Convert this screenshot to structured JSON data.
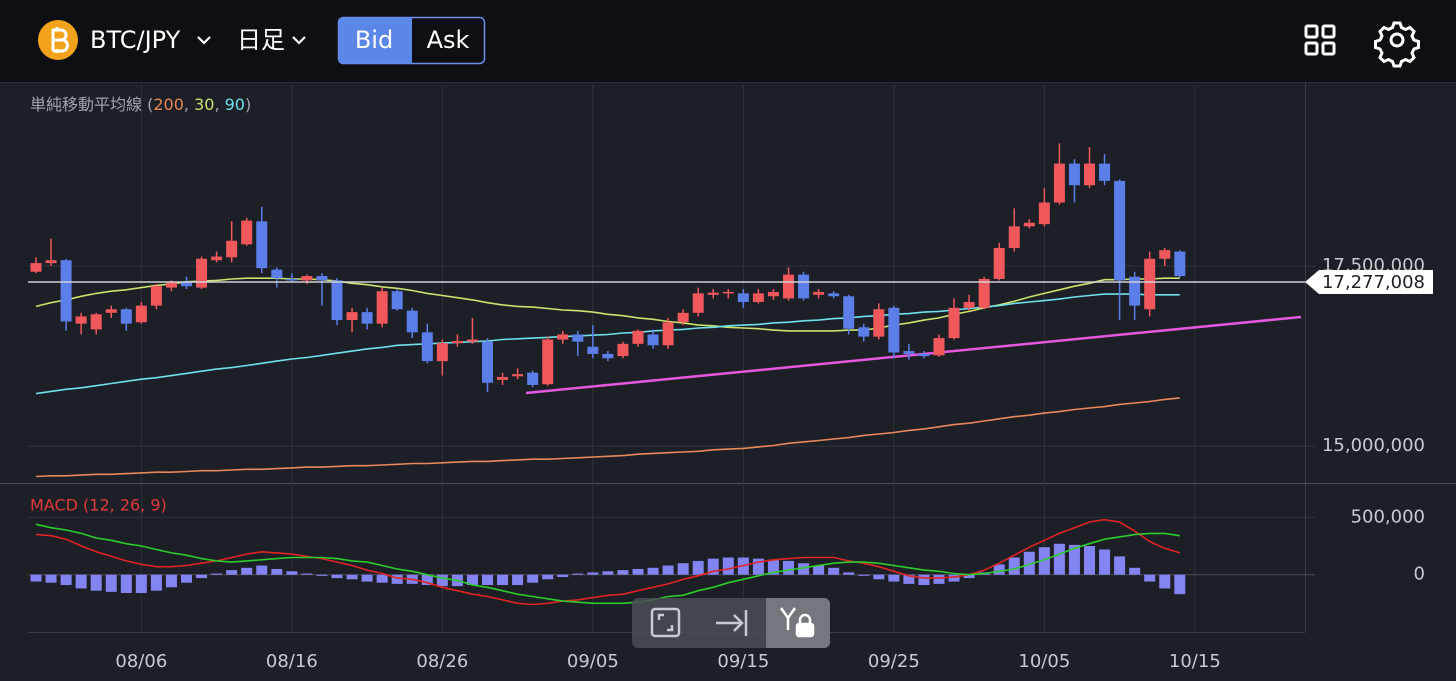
{
  "header": {
    "pair": "BTC/JPY",
    "timeframe": "日足",
    "bid": "Bid",
    "ask": "Ask"
  },
  "chart_data": [
    {
      "type": "candlestick",
      "legend_title": "単純移動平均線",
      "categories": [
        null,
        null,
        null,
        null,
        null,
        null,
        null,
        "08/06",
        null,
        null,
        null,
        null,
        null,
        null,
        null,
        null,
        null,
        "08/16",
        null,
        null,
        null,
        null,
        null,
        null,
        null,
        null,
        null,
        "08/26",
        null,
        null,
        null,
        null,
        null,
        null,
        null,
        null,
        null,
        "09/05",
        null,
        null,
        null,
        null,
        null,
        null,
        null,
        null,
        null,
        "09/15",
        null,
        null,
        null,
        null,
        null,
        null,
        null,
        null,
        null,
        "09/25",
        null,
        null,
        null,
        null,
        null,
        null,
        null,
        null,
        null,
        "10/05",
        null,
        null,
        null,
        null,
        null,
        null,
        null,
        null,
        null,
        "10/15"
      ],
      "up_color": "#f0585c",
      "down_color": "#5b7ee8",
      "open": [
        17420000,
        17540000,
        17580000,
        16700000,
        16620000,
        16850000,
        16900000,
        16720000,
        16950000,
        17200000,
        17270000,
        17200000,
        17580000,
        17620000,
        17800000,
        18120000,
        17450000,
        17320000,
        17300000,
        17360000,
        17300000,
        16750000,
        16860000,
        16700000,
        17150000,
        16880000,
        16580000,
        16180000,
        16430000,
        16450000,
        16450000,
        15920000,
        15970000,
        16020000,
        15860000,
        16480000,
        16550000,
        16380000,
        16280000,
        16250000,
        16420000,
        16550000,
        16400000,
        16720000,
        16850000,
        17100000,
        17120000,
        17120000,
        17000000,
        17080000,
        17050000,
        17380000,
        17100000,
        17120000,
        17080000,
        16650000,
        16520000,
        16920000,
        16320000,
        16280000,
        16260000,
        16500000,
        16920000,
        16920000,
        17320000,
        17750000,
        18050000,
        18080000,
        18380000,
        18920000,
        18620000,
        18920000,
        18680000,
        17350000,
        16900000,
        17600000,
        17700000,
        null
      ],
      "high": [
        17620000,
        17880000,
        17600000,
        16850000,
        16850000,
        16950000,
        16920000,
        17000000,
        17250000,
        17300000,
        17350000,
        17630000,
        17700000,
        18120000,
        18170000,
        18320000,
        17480000,
        17400000,
        17380000,
        17400000,
        17330000,
        16920000,
        16920000,
        17200000,
        17180000,
        16920000,
        16700000,
        16480000,
        16550000,
        16780000,
        16500000,
        16020000,
        16080000,
        16050000,
        16520000,
        16600000,
        16600000,
        16680000,
        16320000,
        16450000,
        16620000,
        16620000,
        16780000,
        16900000,
        17200000,
        17180000,
        17180000,
        17180000,
        17180000,
        17180000,
        17480000,
        17420000,
        17180000,
        17150000,
        17100000,
        16700000,
        16980000,
        16950000,
        16420000,
        16320000,
        16550000,
        17050000,
        17100000,
        17350000,
        17820000,
        18300000,
        18150000,
        18580000,
        19200000,
        18980000,
        19150000,
        19050000,
        18700000,
        17420000,
        17700000,
        17750000,
        17720000,
        null
      ],
      "low": [
        17400000,
        17500000,
        16600000,
        16550000,
        16550000,
        16780000,
        16600000,
        16700000,
        16900000,
        17150000,
        17180000,
        17180000,
        17550000,
        17550000,
        17780000,
        17400000,
        17200000,
        17280000,
        17250000,
        16950000,
        16680000,
        16580000,
        16620000,
        16650000,
        16880000,
        16500000,
        16150000,
        15980000,
        16380000,
        16420000,
        15750000,
        15850000,
        15930000,
        15820000,
        15840000,
        16420000,
        16250000,
        16220000,
        16180000,
        16220000,
        16380000,
        16350000,
        16350000,
        16680000,
        16800000,
        17050000,
        17050000,
        16920000,
        16980000,
        17030000,
        17020000,
        17020000,
        17050000,
        17050000,
        16550000,
        16450000,
        16480000,
        16220000,
        16200000,
        16220000,
        16240000,
        16480000,
        16880000,
        16900000,
        17300000,
        17700000,
        18020000,
        18050000,
        18350000,
        18380000,
        18580000,
        18620000,
        16750000,
        16750000,
        16800000,
        17500000,
        17340000,
        null
      ],
      "close": [
        17540000,
        17580000,
        16730000,
        16800000,
        16830000,
        16900000,
        16700000,
        16950000,
        17220000,
        17280000,
        17220000,
        17600000,
        17630000,
        17850000,
        18130000,
        17470000,
        17330000,
        17300000,
        17360000,
        17300000,
        16750000,
        16860000,
        16700000,
        17150000,
        16900000,
        16580000,
        16180000,
        16430000,
        16460000,
        16480000,
        15880000,
        15960000,
        16000000,
        15850000,
        16480000,
        16550000,
        16450000,
        16280000,
        16220000,
        16420000,
        16600000,
        16400000,
        16720000,
        16850000,
        17120000,
        17130000,
        17140000,
        17000000,
        17120000,
        17140000,
        17380000,
        17050000,
        17140000,
        17080000,
        16630000,
        16520000,
        16900000,
        16300000,
        16280000,
        16250000,
        16500000,
        16920000,
        17000000,
        17320000,
        17750000,
        18050000,
        18100000,
        18380000,
        18920000,
        18620000,
        18920000,
        18680000,
        17300000,
        16950000,
        17600000,
        17720000,
        17360000,
        null
      ],
      "series": [
        {
          "name": "200",
          "color": "#e8885a",
          "values": [
            14580000,
            14590000,
            14590000,
            14600000,
            14610000,
            14610000,
            14620000,
            14630000,
            14640000,
            14640000,
            14650000,
            14660000,
            14660000,
            14670000,
            14680000,
            14680000,
            14690000,
            14700000,
            14710000,
            14710000,
            14720000,
            14730000,
            14730000,
            14740000,
            14750000,
            14760000,
            14760000,
            14770000,
            14780000,
            14790000,
            14790000,
            14800000,
            14810000,
            14820000,
            14820000,
            14830000,
            14840000,
            14850000,
            14860000,
            14870000,
            14890000,
            14900000,
            14910000,
            14920000,
            14930000,
            14950000,
            14960000,
            14970000,
            14990000,
            15010000,
            15040000,
            15060000,
            15080000,
            15100000,
            15120000,
            15150000,
            15170000,
            15190000,
            15220000,
            15240000,
            15270000,
            15300000,
            15320000,
            15350000,
            15380000,
            15410000,
            15430000,
            15460000,
            15480000,
            15510000,
            15530000,
            15550000,
            15580000,
            15600000,
            15620000,
            15650000,
            15670000,
            null
          ]
        },
        {
          "name": "30",
          "color": "#c9e36e",
          "values": [
            16940000,
            16990000,
            17030000,
            17080000,
            17120000,
            17150000,
            17170000,
            17200000,
            17230000,
            17250000,
            17280000,
            17290000,
            17300000,
            17320000,
            17330000,
            17330000,
            17330000,
            17320000,
            17320000,
            17310000,
            17290000,
            17260000,
            17240000,
            17210000,
            17190000,
            17160000,
            17120000,
            17090000,
            17060000,
            17030000,
            16990000,
            16960000,
            16940000,
            16930000,
            16910000,
            16890000,
            16880000,
            16860000,
            16830000,
            16810000,
            16780000,
            16760000,
            16730000,
            16710000,
            16680000,
            16670000,
            16650000,
            16640000,
            16630000,
            16610000,
            16600000,
            16600000,
            16600000,
            16600000,
            16610000,
            16610000,
            16640000,
            16680000,
            16710000,
            16750000,
            16780000,
            16830000,
            16870000,
            16920000,
            16960000,
            17010000,
            17070000,
            17120000,
            17170000,
            17220000,
            17260000,
            17310000,
            17310000,
            17320000,
            17320000,
            17330000,
            17330000,
            null
          ]
        },
        {
          "name": "90",
          "color": "#70e0ea",
          "values": [
            15730000,
            15760000,
            15790000,
            15810000,
            15840000,
            15870000,
            15900000,
            15930000,
            15950000,
            15980000,
            16010000,
            16040000,
            16070000,
            16090000,
            16120000,
            16150000,
            16180000,
            16210000,
            16230000,
            16260000,
            16290000,
            16320000,
            16350000,
            16370000,
            16400000,
            16410000,
            16420000,
            16430000,
            16440000,
            16450000,
            16460000,
            16480000,
            16490000,
            16500000,
            16510000,
            16520000,
            16530000,
            16540000,
            16550000,
            16570000,
            16580000,
            16600000,
            16610000,
            16620000,
            16640000,
            16650000,
            16670000,
            16680000,
            16690000,
            16710000,
            16720000,
            16740000,
            16750000,
            16770000,
            16780000,
            16800000,
            16810000,
            16830000,
            16840000,
            16860000,
            16870000,
            16890000,
            16910000,
            16930000,
            16950000,
            16980000,
            17000000,
            17020000,
            17040000,
            17070000,
            17090000,
            17110000,
            17110000,
            17110000,
            17100000,
            17100000,
            17100000,
            null
          ]
        }
      ],
      "last_price": {
        "value": 17277008,
        "label": "17,277,008"
      },
      "ylim": [
        14490000,
        20010000
      ],
      "yticks": [
        {
          "value": 15000000,
          "label": "15,000,000"
        },
        {
          "value": 17500000,
          "label": "17,500,000"
        }
      ],
      "grid": true
    },
    {
      "type": "macd",
      "title": "MACD (12, 26, 9)",
      "series": [
        {
          "type": "bar",
          "color": "#8383f2",
          "values": [
            -60000,
            -70000,
            -90000,
            -120000,
            -140000,
            -150000,
            -160000,
            -160000,
            -140000,
            -110000,
            -70000,
            -30000,
            10000,
            40000,
            60000,
            80000,
            50000,
            30000,
            10000,
            -10000,
            -30000,
            -40000,
            -60000,
            -70000,
            -80000,
            -80000,
            -90000,
            -100000,
            -100000,
            -90000,
            -90000,
            -90000,
            -90000,
            -70000,
            -40000,
            -20000,
            10000,
            20000,
            30000,
            40000,
            50000,
            60000,
            80000,
            100000,
            120000,
            140000,
            150000,
            150000,
            140000,
            130000,
            120000,
            100000,
            80000,
            60000,
            20000,
            -10000,
            -40000,
            -60000,
            -80000,
            -90000,
            -80000,
            -60000,
            -30000,
            20000,
            90000,
            150000,
            200000,
            240000,
            270000,
            260000,
            250000,
            220000,
            160000,
            60000,
            -60000,
            -120000,
            -170000,
            null
          ]
        },
        {
          "type": "line",
          "color": "#e02424",
          "values": [
            350000,
            340000,
            310000,
            250000,
            200000,
            160000,
            120000,
            90000,
            70000,
            70000,
            80000,
            100000,
            120000,
            150000,
            180000,
            200000,
            190000,
            180000,
            160000,
            140000,
            110000,
            80000,
            40000,
            10000,
            -30000,
            -40000,
            -70000,
            -110000,
            -140000,
            -170000,
            -190000,
            -220000,
            -250000,
            -260000,
            -250000,
            -230000,
            -220000,
            -200000,
            -180000,
            -170000,
            -140000,
            -110000,
            -80000,
            -40000,
            -10000,
            30000,
            50000,
            80000,
            110000,
            130000,
            140000,
            150000,
            150000,
            150000,
            120000,
            100000,
            70000,
            30000,
            -10000,
            -30000,
            -30000,
            -20000,
            0,
            40000,
            100000,
            170000,
            240000,
            300000,
            360000,
            410000,
            460000,
            480000,
            460000,
            380000,
            290000,
            230000,
            190000,
            null
          ]
        },
        {
          "type": "line",
          "color": "#2bcc2b",
          "values": [
            440000,
            410000,
            390000,
            360000,
            320000,
            300000,
            270000,
            250000,
            220000,
            190000,
            170000,
            140000,
            120000,
            110000,
            120000,
            130000,
            140000,
            150000,
            150000,
            150000,
            140000,
            120000,
            110000,
            80000,
            50000,
            30000,
            0,
            -30000,
            -50000,
            -90000,
            -110000,
            -140000,
            -170000,
            -190000,
            -210000,
            -230000,
            -240000,
            -250000,
            -250000,
            -250000,
            -240000,
            -220000,
            -190000,
            -180000,
            -140000,
            -110000,
            -70000,
            -40000,
            -10000,
            20000,
            40000,
            60000,
            80000,
            100000,
            110000,
            110000,
            100000,
            80000,
            60000,
            40000,
            30000,
            10000,
            0,
            10000,
            30000,
            50000,
            90000,
            130000,
            180000,
            230000,
            270000,
            310000,
            330000,
            350000,
            360000,
            360000,
            340000,
            null
          ]
        }
      ],
      "ylim": [
        -500000,
        800000
      ],
      "yticks": [
        0,
        {
          "value": 500000,
          "label": "500,000"
        }
      ],
      "grid": true
    }
  ]
}
